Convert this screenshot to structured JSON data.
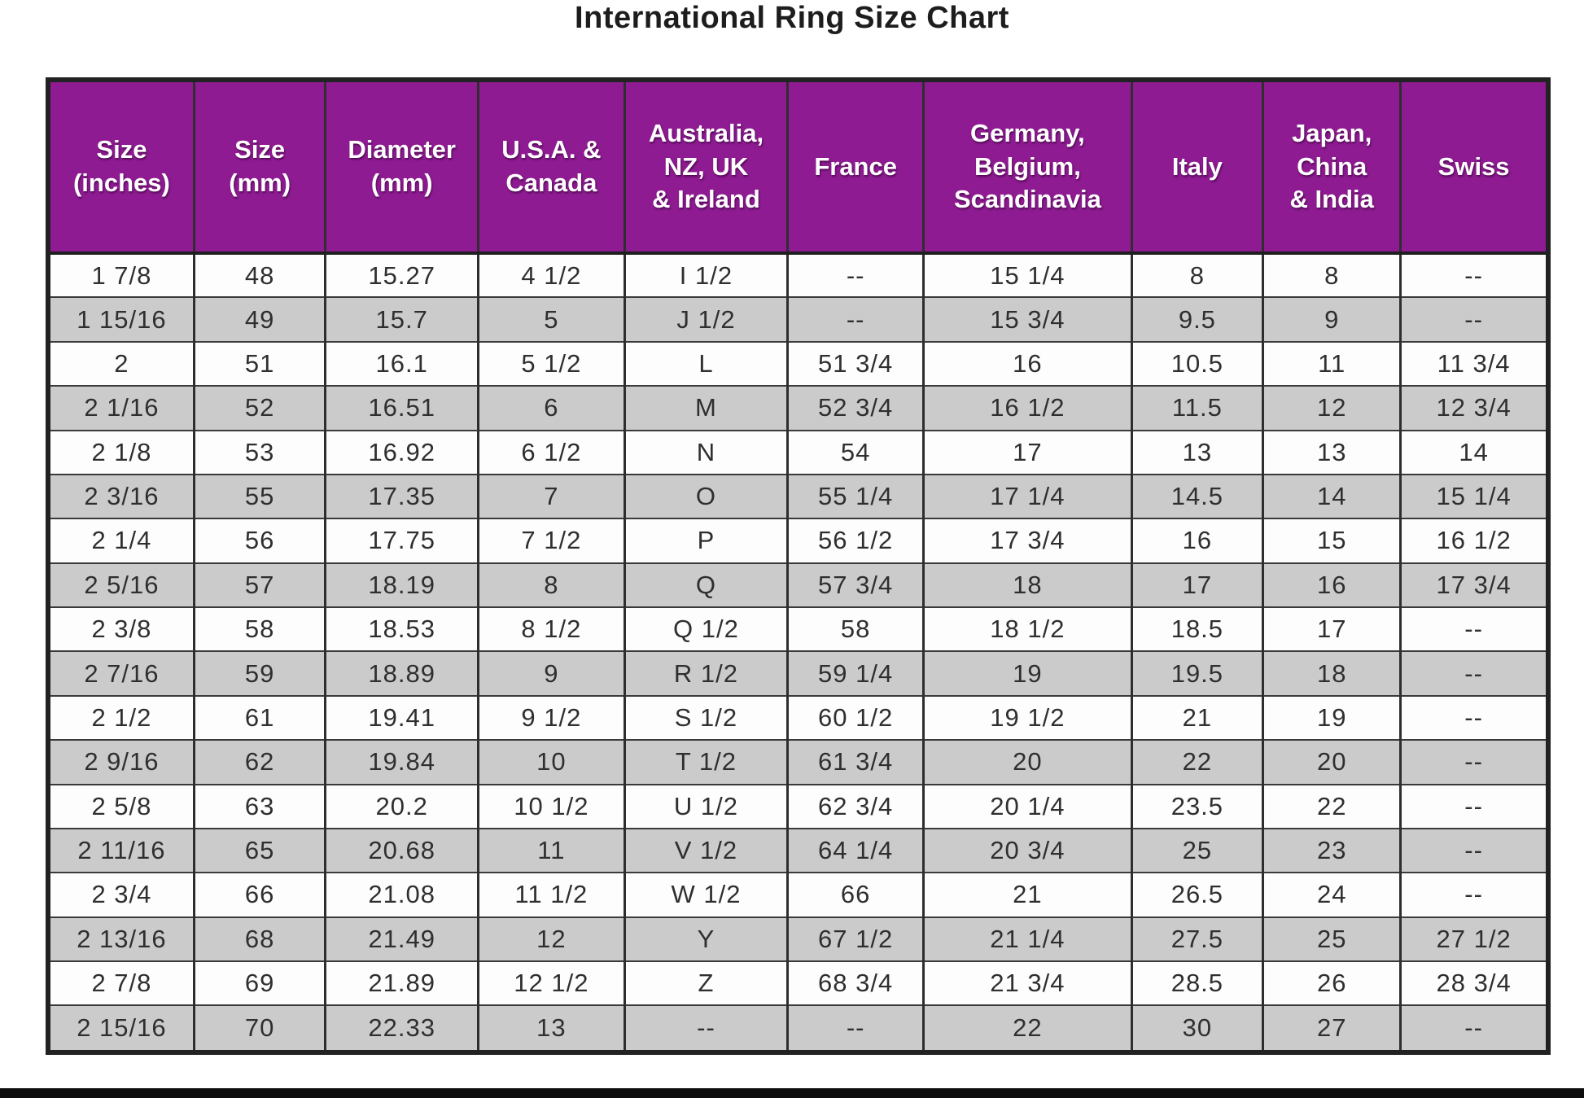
{
  "page": {
    "title": "International Ring Size Chart"
  },
  "colors": {
    "header_background": "#8e1b91",
    "header_text": "#ffffff",
    "row_alt_gray": "#cbcbcb",
    "row_white": "#fdfdfd",
    "border_dark": "#2e2e2e",
    "bottom_bar": "#0d0d0d"
  },
  "chart_data": {
    "type": "table",
    "title": "International Ring Size Chart",
    "columns": [
      {
        "id": "size-inches",
        "lines": [
          "Size",
          "(inches)"
        ],
        "width": 9.6
      },
      {
        "id": "size-mm",
        "lines": [
          "Size",
          "(mm)"
        ],
        "width": 8.8
      },
      {
        "id": "diameter-mm",
        "lines": [
          "Diameter",
          "(mm)"
        ],
        "width": 10.2
      },
      {
        "id": "usa-canada",
        "lines": [
          "U.S.A. &",
          "Canada"
        ],
        "width": 9.8
      },
      {
        "id": "australia-nz-uk-ireland",
        "lines": [
          "Australia,",
          "NZ, UK",
          "& Ireland"
        ],
        "width": 10.9
      },
      {
        "id": "france",
        "lines": [
          "France"
        ],
        "width": 9.1
      },
      {
        "id": "germany-belgium-scandinavia",
        "lines": [
          "Germany,",
          "Belgium,",
          "Scandinavia"
        ],
        "width": 13.9
      },
      {
        "id": "italy",
        "lines": [
          "Italy"
        ],
        "width": 8.8
      },
      {
        "id": "japan-china-india",
        "lines": [
          "Japan,",
          "China",
          "& India"
        ],
        "width": 9.2
      },
      {
        "id": "swiss",
        "lines": [
          "Swiss"
        ],
        "width": 9.7
      }
    ],
    "rows": [
      [
        "1 7/8",
        "48",
        "15.27",
        "4 1/2",
        "I 1/2",
        "--",
        "15 1/4",
        "8",
        "8",
        "--"
      ],
      [
        "1 15/16",
        "49",
        "15.7",
        "5",
        "J 1/2",
        "--",
        "15 3/4",
        "9.5",
        "9",
        "--"
      ],
      [
        "2",
        "51",
        "16.1",
        "5 1/2",
        "L",
        "51 3/4",
        "16",
        "10.5",
        "11",
        "11 3/4"
      ],
      [
        "2 1/16",
        "52",
        "16.51",
        "6",
        "M",
        "52 3/4",
        "16 1/2",
        "11.5",
        "12",
        "12 3/4"
      ],
      [
        "2 1/8",
        "53",
        "16.92",
        "6 1/2",
        "N",
        "54",
        "17",
        "13",
        "13",
        "14"
      ],
      [
        "2 3/16",
        "55",
        "17.35",
        "7",
        "O",
        "55 1/4",
        "17 1/4",
        "14.5",
        "14",
        "15 1/4"
      ],
      [
        "2 1/4",
        "56",
        "17.75",
        "7 1/2",
        "P",
        "56 1/2",
        "17 3/4",
        "16",
        "15",
        "16 1/2"
      ],
      [
        "2 5/16",
        "57",
        "18.19",
        "8",
        "Q",
        "57 3/4",
        "18",
        "17",
        "16",
        "17 3/4"
      ],
      [
        "2 3/8",
        "58",
        "18.53",
        "8 1/2",
        "Q 1/2",
        "58",
        "18 1/2",
        "18.5",
        "17",
        "--"
      ],
      [
        "2 7/16",
        "59",
        "18.89",
        "9",
        "R 1/2",
        "59 1/4",
        "19",
        "19.5",
        "18",
        "--"
      ],
      [
        "2 1/2",
        "61",
        "19.41",
        "9 1/2",
        "S 1/2",
        "60 1/2",
        "19 1/2",
        "21",
        "19",
        "--"
      ],
      [
        "2 9/16",
        "62",
        "19.84",
        "10",
        "T 1/2",
        "61 3/4",
        "20",
        "22",
        "20",
        "--"
      ],
      [
        "2 5/8",
        "63",
        "20.2",
        "10 1/2",
        "U 1/2",
        "62 3/4",
        "20 1/4",
        "23.5",
        "22",
        "--"
      ],
      [
        "2 11/16",
        "65",
        "20.68",
        "11",
        "V 1/2",
        "64 1/4",
        "20 3/4",
        "25",
        "23",
        "--"
      ],
      [
        "2 3/4",
        "66",
        "21.08",
        "11 1/2",
        "W 1/2",
        "66",
        "21",
        "26.5",
        "24",
        "--"
      ],
      [
        "2 13/16",
        "68",
        "21.49",
        "12",
        "Y",
        "67 1/2",
        "21 1/4",
        "27.5",
        "25",
        "27 1/2"
      ],
      [
        "2 7/8",
        "69",
        "21.89",
        "12 1/2",
        "Z",
        "68 3/4",
        "21 3/4",
        "28.5",
        "26",
        "28 3/4"
      ],
      [
        "2 15/16",
        "70",
        "22.33",
        "13",
        "--",
        "--",
        "22",
        "30",
        "27",
        "--"
      ]
    ]
  }
}
